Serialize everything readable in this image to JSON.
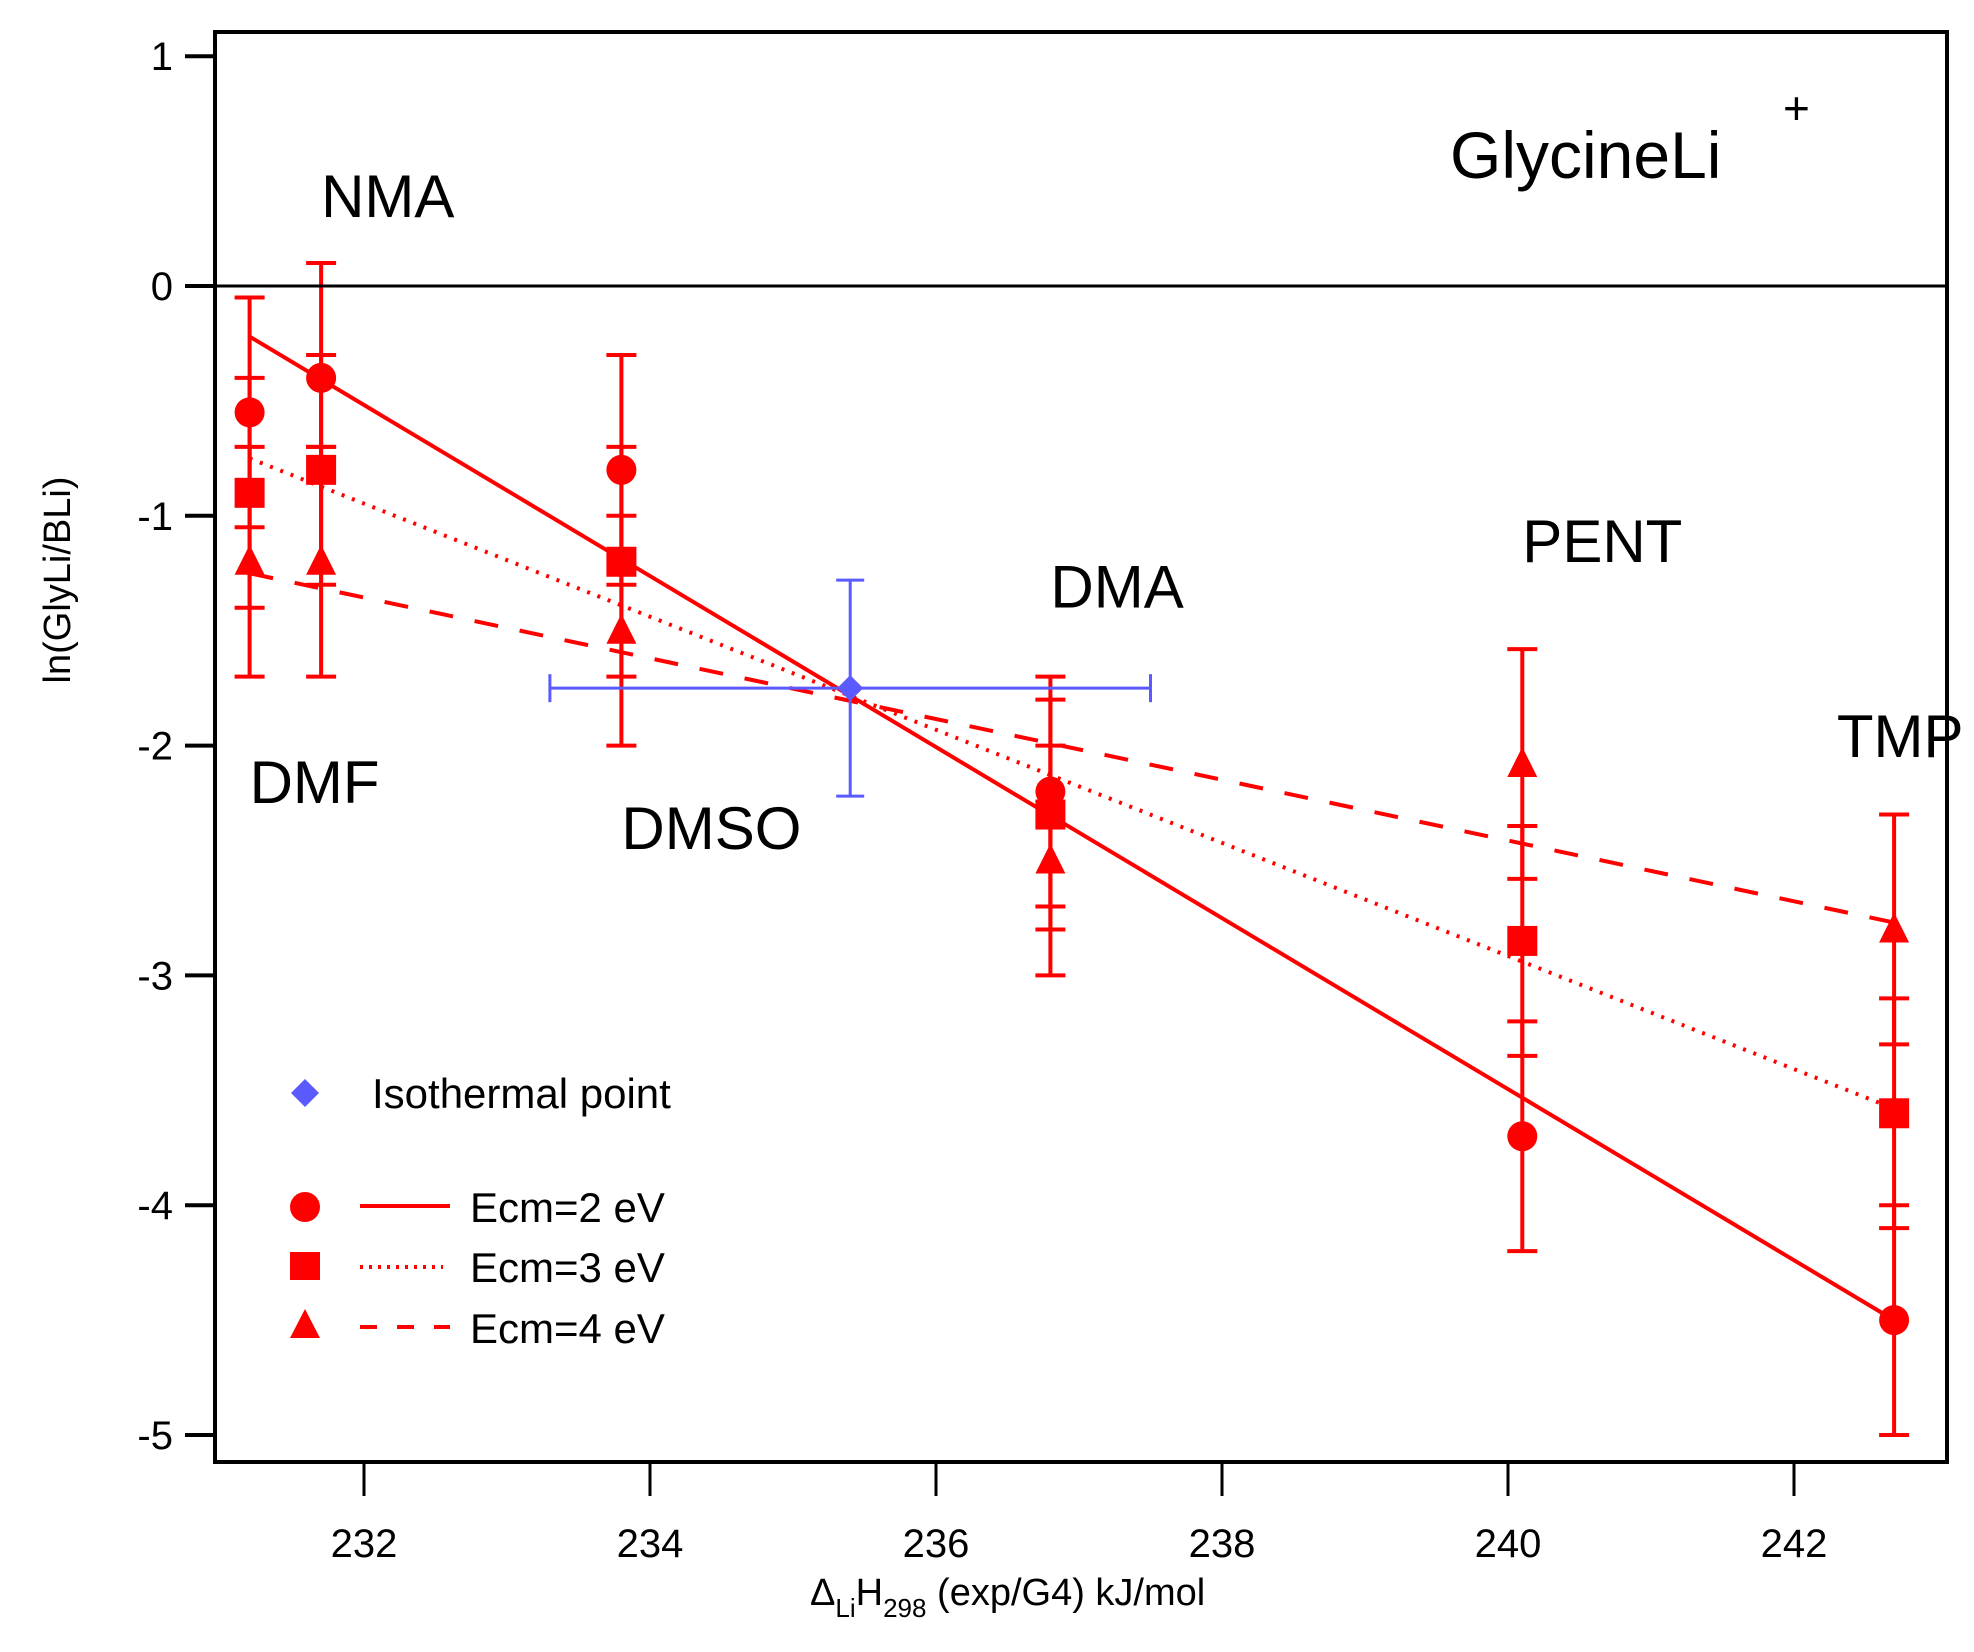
{
  "chart_data": {
    "type": "scatter",
    "title": "GlycineLi",
    "title_superscript": "+",
    "xlabel": {
      "delta": "Δ",
      "sub1": "Li",
      "main": "H",
      "sub2": "298",
      "rest": " (exp/G4) kJ/mol"
    },
    "ylabel": "ln(GlyLi/BLi)",
    "xlim": [
      231.0,
      243.0
    ],
    "ylim": [
      -5.1,
      1.0
    ],
    "x_ticks": [
      232,
      234,
      236,
      238,
      240,
      242
    ],
    "y_ticks": [
      1,
      0,
      -1,
      -2,
      -3,
      -4,
      -5
    ],
    "zero_line": true,
    "grid": false,
    "legend_position": "bottom-left",
    "colors": {
      "red": "#ff0000",
      "blue": "#5a5aff",
      "axis": "#000000"
    },
    "annotations": [
      {
        "text": "NMA",
        "x": 231.7,
        "y": 0.3
      },
      {
        "text": "DMF",
        "x": 231.2,
        "y": -2.25
      },
      {
        "text": "DMSO",
        "x": 233.8,
        "y": -2.45
      },
      {
        "text": "DMA",
        "x": 236.8,
        "y": -1.4
      },
      {
        "text": "PENT",
        "x": 240.1,
        "y": -1.2
      },
      {
        "text": "TMP",
        "x": 242.3,
        "y": -2.05
      }
    ],
    "isothermal_point": {
      "name": "Isothermal point",
      "x": 235.4,
      "y": -1.75,
      "xerr": [
        233.3,
        237.5
      ],
      "yerr": [
        -2.22,
        -1.28
      ]
    },
    "series": [
      {
        "name": "Ecm=2 eV",
        "marker": "circle",
        "line": "solid",
        "points": [
          {
            "x": 231.2,
            "y": -0.55,
            "lo": -1.05,
            "hi": -0.05
          },
          {
            "x": 231.7,
            "y": -0.4,
            "lo": -0.7,
            "hi": 0.1
          },
          {
            "x": 233.8,
            "y": -0.8,
            "lo": -1.3,
            "hi": -0.3
          },
          {
            "x": 236.8,
            "y": -2.2,
            "lo": -2.7,
            "hi": -1.7
          },
          {
            "x": 240.1,
            "y": -3.7,
            "lo": -4.2,
            "hi": -3.2
          },
          {
            "x": 242.7,
            "y": -4.5,
            "lo": -5.0,
            "hi": -4.0
          }
        ],
        "fit": [
          [
            231.2,
            -0.22
          ],
          [
            242.7,
            -4.5
          ]
        ]
      },
      {
        "name": "Ecm=3 eV",
        "marker": "square",
        "line": "dotted",
        "points": [
          {
            "x": 231.2,
            "y": -0.9,
            "lo": -1.4,
            "hi": -0.4
          },
          {
            "x": 231.7,
            "y": -0.8,
            "lo": -1.3,
            "hi": -0.3
          },
          {
            "x": 233.8,
            "y": -1.2,
            "lo": -1.7,
            "hi": -0.7
          },
          {
            "x": 236.8,
            "y": -2.3,
            "lo": -2.8,
            "hi": -1.8
          },
          {
            "x": 240.1,
            "y": -2.85,
            "lo": -3.35,
            "hi": -2.35
          },
          {
            "x": 242.7,
            "y": -3.6,
            "lo": -4.1,
            "hi": -3.1
          }
        ],
        "fit": [
          [
            231.2,
            -0.75
          ],
          [
            242.7,
            -3.58
          ]
        ]
      },
      {
        "name": "Ecm=4 eV",
        "marker": "triangle",
        "line": "dashed",
        "points": [
          {
            "x": 231.2,
            "y": -1.2,
            "lo": -1.7,
            "hi": -0.7
          },
          {
            "x": 231.7,
            "y": -1.2,
            "lo": -1.7,
            "hi": -0.7
          },
          {
            "x": 233.8,
            "y": -1.5,
            "lo": -2.0,
            "hi": -1.0
          },
          {
            "x": 236.8,
            "y": -2.5,
            "lo": -3.0,
            "hi": -2.0
          },
          {
            "x": 240.1,
            "y": -2.08,
            "lo": -2.58,
            "hi": -1.58
          },
          {
            "x": 242.7,
            "y": -2.8,
            "lo": -3.3,
            "hi": -2.3
          }
        ],
        "fit": [
          [
            231.2,
            -1.25
          ],
          [
            242.7,
            -2.77
          ]
        ]
      }
    ]
  }
}
